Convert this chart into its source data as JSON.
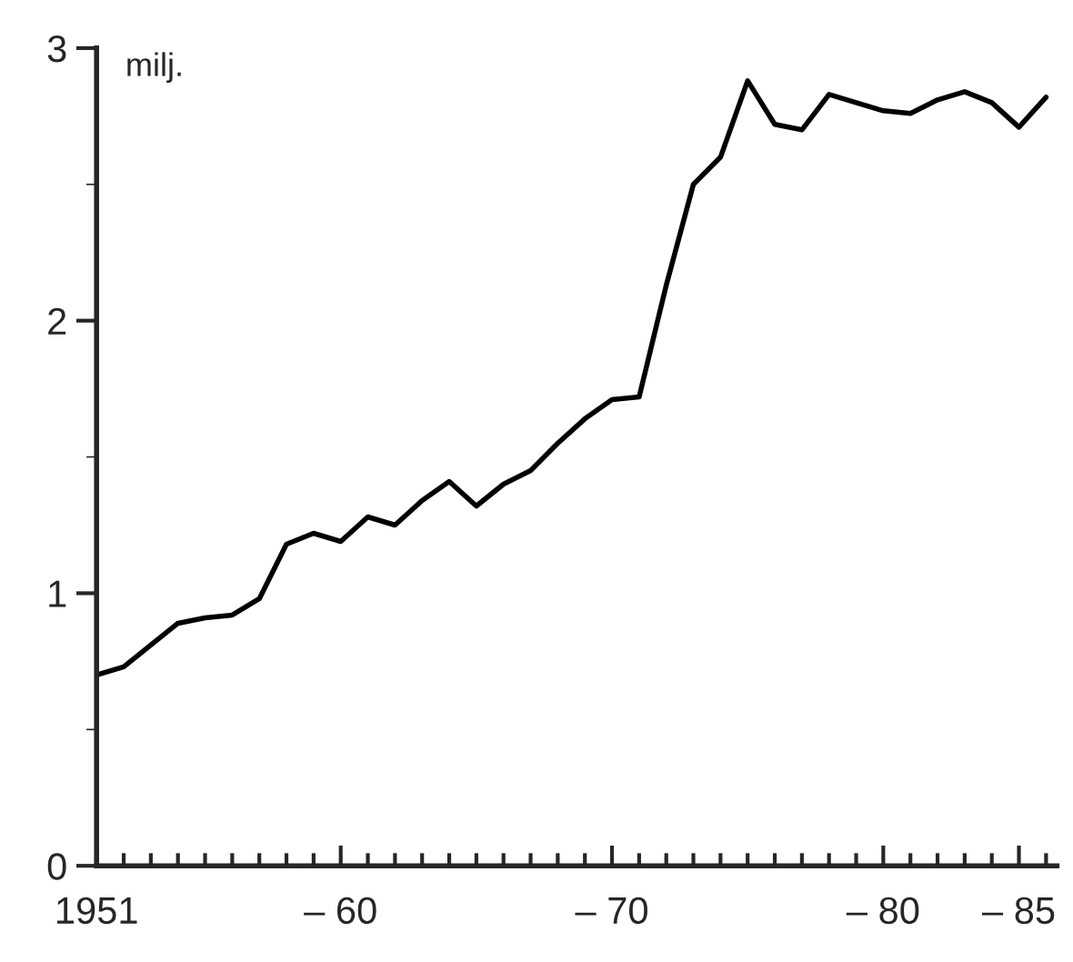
{
  "chart_data": {
    "type": "line",
    "ylabel": "milj.",
    "categories": [
      "1951",
      null,
      null,
      null,
      null,
      null,
      null,
      null,
      null,
      "– 60",
      null,
      null,
      null,
      null,
      null,
      null,
      null,
      null,
      null,
      "– 70",
      null,
      null,
      null,
      null,
      null,
      null,
      null,
      null,
      null,
      "– 80",
      null,
      null,
      null,
      null,
      "– 85",
      null
    ],
    "series": [
      {
        "color": "#000000",
        "values": [
          0.7,
          0.73,
          0.81,
          0.89,
          0.91,
          0.92,
          0.98,
          1.18,
          1.22,
          1.19,
          1.28,
          1.25,
          1.34,
          1.41,
          1.32,
          1.4,
          1.45,
          1.55,
          1.64,
          1.71,
          1.72,
          2.13,
          2.5,
          2.6,
          2.88,
          2.72,
          2.7,
          2.83,
          2.8,
          2.77,
          2.76,
          2.81,
          2.84,
          2.8,
          2.71,
          2.82
        ]
      }
    ],
    "ylim": [
      0,
      3
    ],
    "yticks": [
      0,
      1,
      2,
      3
    ],
    "grid": false,
    "legend": false,
    "marker": "none",
    "line_style": "solid"
  }
}
